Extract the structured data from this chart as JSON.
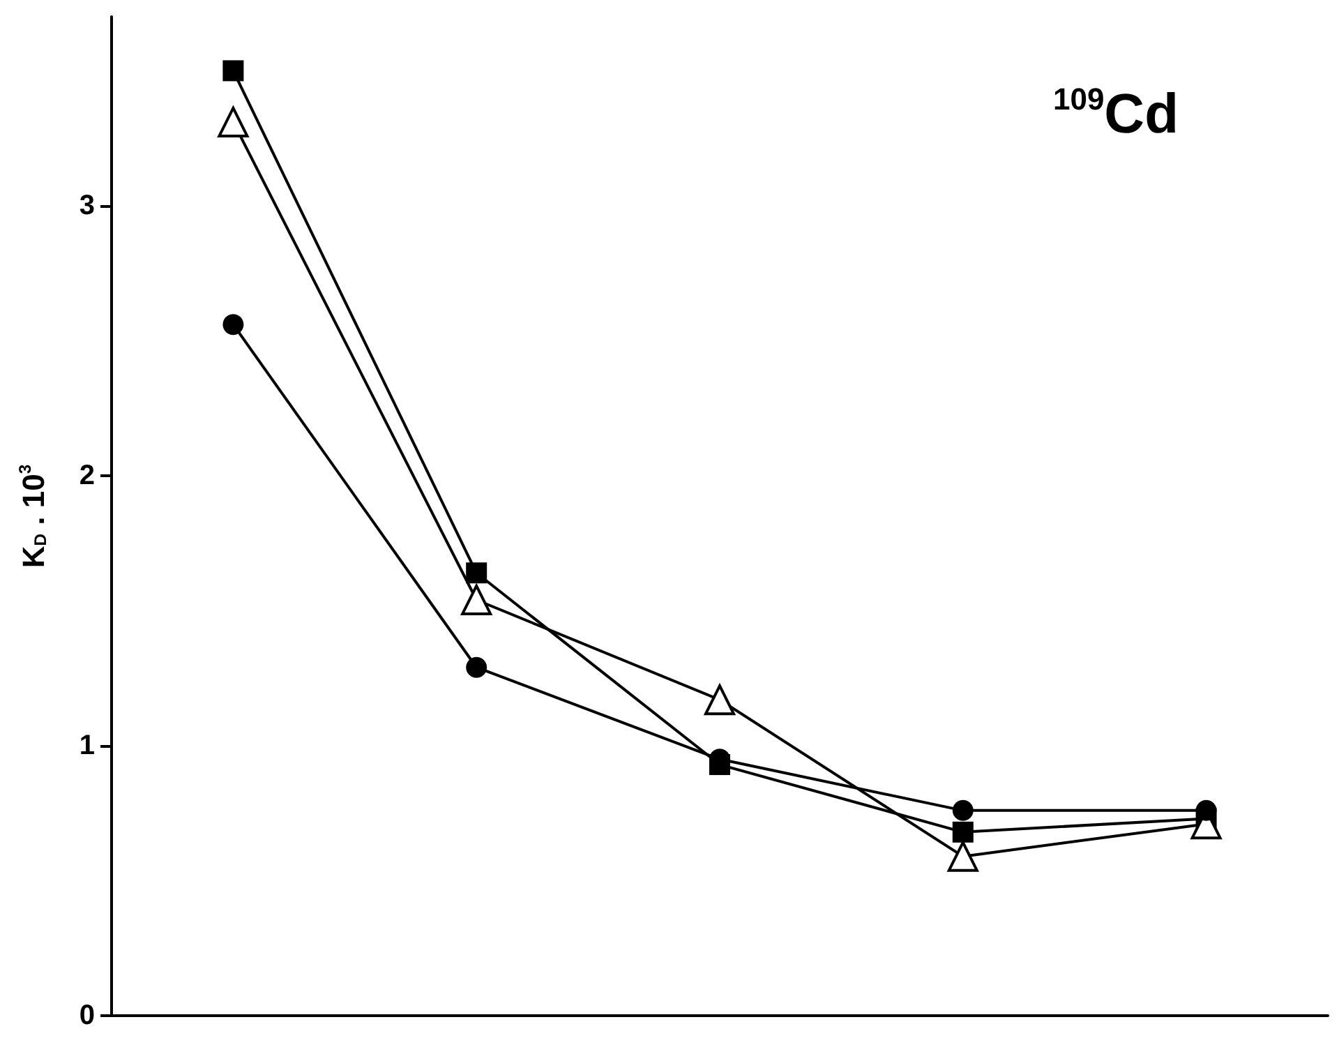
{
  "chart_data": {
    "type": "line",
    "title": "$^{109}$Cd",
    "ylabel": "K$_{D}$ . 10$^{3}$",
    "categories": [
      null,
      null,
      null,
      null,
      null
    ],
    "series": [
      {
        "color": "#000000",
        "marker": "square",
        "values": [
          3.5,
          1.64,
          0.93,
          0.68,
          0.73
        ]
      },
      {
        "color": "#000000",
        "marker": "triangle",
        "values": [
          3.31,
          1.54,
          1.17,
          0.59,
          0.71
        ]
      },
      {
        "color": "#000000",
        "marker": "circle",
        "values": [
          2.56,
          1.29,
          0.95,
          0.76,
          0.76
        ]
      }
    ],
    "ylim": [
      0,
      3.7
    ],
    "yticks": [
      0,
      1,
      2,
      3
    ],
    "grid": false
  }
}
